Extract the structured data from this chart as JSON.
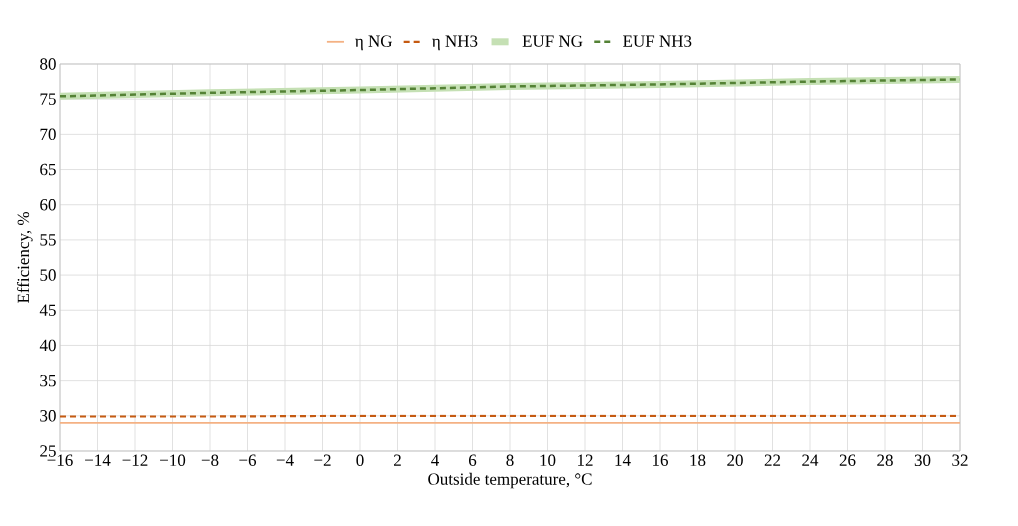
{
  "chart_data": {
    "type": "line",
    "xlabel": "Outside temperature, °C",
    "ylabel": "Efficiency, %",
    "x": [
      -16,
      -8,
      0,
      8,
      16,
      24,
      32
    ],
    "series": [
      {
        "name": "η NG",
        "color": "#f4b183",
        "line_style": "solid",
        "values": [
          29.0,
          29.0,
          29.0,
          29.0,
          29.0,
          29.0,
          29.0
        ]
      },
      {
        "name": "η NH3",
        "color": "#c55a11",
        "line_style": "dashed",
        "values": [
          29.9,
          29.9,
          30.0,
          30.0,
          30.0,
          30.0,
          30.0
        ]
      },
      {
        "name": "EUF NG",
        "color": "#c5e0b4",
        "line_style": "solid",
        "values": [
          75.4,
          75.9,
          76.3,
          76.8,
          77.1,
          77.5,
          77.8
        ]
      },
      {
        "name": "EUF NH3",
        "color": "#548235",
        "line_style": "dashed",
        "values": [
          75.4,
          75.9,
          76.3,
          76.8,
          77.1,
          77.5,
          77.8
        ]
      }
    ],
    "xlim": [
      -16,
      32
    ],
    "ylim": [
      25,
      80
    ],
    "xticks": [
      {
        "value": -16,
        "label": "−16"
      },
      {
        "value": -14,
        "label": "−14"
      },
      {
        "value": -12,
        "label": "−12"
      },
      {
        "value": -10,
        "label": "−10"
      },
      {
        "value": -8,
        "label": "−8"
      },
      {
        "value": -6,
        "label": "−6"
      },
      {
        "value": -4,
        "label": "−4"
      },
      {
        "value": -2,
        "label": "−2"
      },
      0,
      2,
      4,
      6,
      8,
      10,
      12,
      14,
      16,
      18,
      20,
      22,
      24,
      26,
      28,
      30,
      32
    ],
    "yticks": [
      25,
      30,
      35,
      40,
      45,
      50,
      55,
      60,
      65,
      70,
      75,
      80
    ],
    "grid": true,
    "legend": "top",
    "marker": "none"
  }
}
